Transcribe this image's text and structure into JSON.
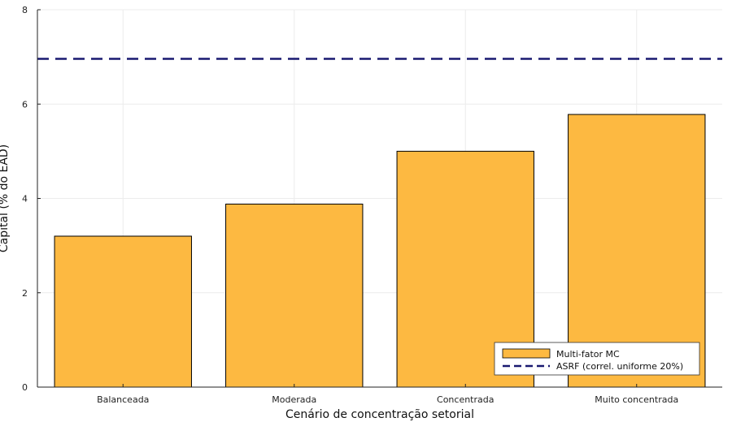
{
  "chart_data": {
    "type": "bar",
    "title": "",
    "xlabel": "Cenário de concentração setorial",
    "ylabel": "Capital (% do EAD)",
    "categories": [
      "Balanceada",
      "Moderada",
      "Concentrada",
      "Muito concentrada"
    ],
    "series": [
      {
        "name": "Multi-fator MC",
        "values": [
          3.2,
          3.88,
          5.0,
          5.78
        ],
        "color": "#FDB941"
      }
    ],
    "reference_lines": [
      {
        "name": "ASRF (correl. uniforme 20%)",
        "y": 6.96,
        "color": "#191970",
        "style": "dashed"
      }
    ],
    "ylim": [
      0,
      8
    ],
    "yticks": [
      0,
      2,
      4,
      6,
      8
    ],
    "grid": true,
    "legend_position": "bottom-right"
  }
}
